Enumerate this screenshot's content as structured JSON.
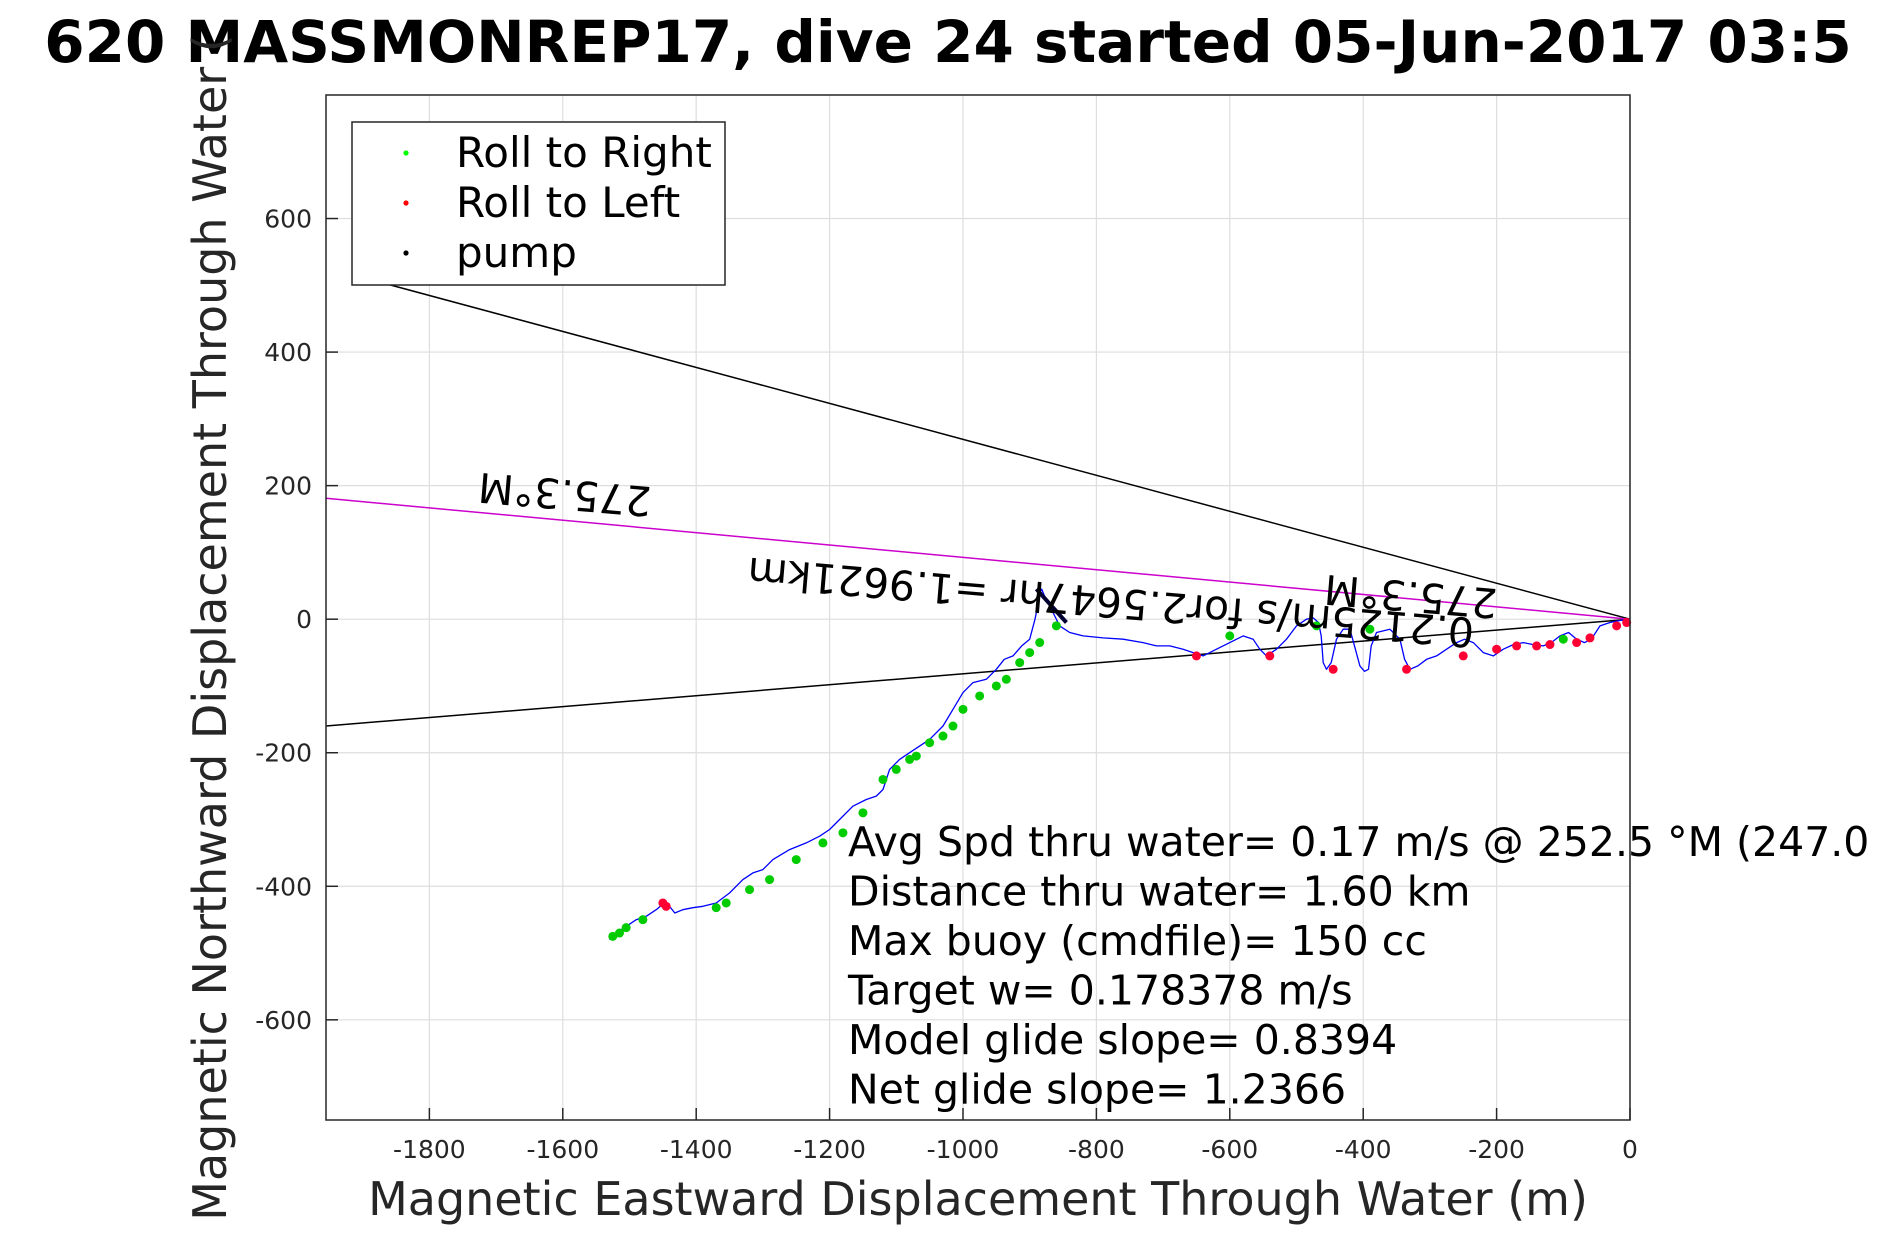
{
  "chart_data": {
    "type": "line",
    "title": "620 MASSMONREP17, dive 24 started 05-Jun-2017 03:5",
    "xlabel": "Magnetic Eastward Displacement Through Water (m)",
    "ylabel": "Magnetic Northward Displacement Through Water (",
    "xlim": [
      -1955,
      0
    ],
    "ylim": [
      -750,
      785
    ],
    "xticks": [
      -1800,
      -1600,
      -1400,
      -1200,
      -1000,
      -800,
      -600,
      -400,
      -200,
      0
    ],
    "yticks": [
      -600,
      -400,
      -200,
      0,
      200,
      400,
      600
    ],
    "grid": true,
    "legend_position": "top-left",
    "legend": [
      {
        "label": "Roll to Right",
        "color": "#00ff00"
      },
      {
        "label": "Roll to Left",
        "color": "#ff0000"
      },
      {
        "label": "pump",
        "color": "#000000"
      }
    ],
    "colors": {
      "track": "#0000ff",
      "right": "#00cc00",
      "left": "#ff0033",
      "pump": "#000033",
      "heading": "#cc00cc",
      "cone": "#000000"
    },
    "track": {
      "name": "glider track",
      "x": [
        0,
        -15,
        -30,
        -45,
        -58,
        -68,
        -80,
        -92,
        -105,
        -118,
        -130,
        -145,
        -160,
        -175,
        -190,
        -205,
        -220,
        -235,
        -248,
        -260,
        -275,
        -290,
        -305,
        -318,
        -330,
        -338,
        -345,
        -360,
        -380,
        -388,
        -392,
        -398,
        -405,
        -413,
        -420,
        -430,
        -440,
        -448,
        -455,
        -460,
        -463,
        -467,
        -475,
        -485,
        -500,
        -515,
        -530,
        -545,
        -555,
        -565,
        -580,
        -600,
        -620,
        -640,
        -655,
        -670,
        -690,
        -710,
        -730,
        -760,
        -790,
        -820,
        -840,
        -855,
        -865,
        -872,
        -878,
        -882,
        -885,
        -888,
        -892,
        -900,
        -912,
        -925,
        -938,
        -950,
        -965,
        -985,
        -1000,
        -1015,
        -1030,
        -1050,
        -1065,
        -1080,
        -1095,
        -1110,
        -1120,
        -1130,
        -1145,
        -1165,
        -1185,
        -1200,
        -1215,
        -1235,
        -1260,
        -1285,
        -1300,
        -1315,
        -1330,
        -1350,
        -1370,
        -1390,
        -1405,
        -1420,
        -1432,
        -1440,
        -1448,
        -1460,
        -1475,
        -1490,
        -1505,
        -1520,
        -1530
      ],
      "y": [
        0,
        -2,
        -5,
        -10,
        -30,
        -35,
        -30,
        -20,
        -25,
        -35,
        -40,
        -38,
        -35,
        -38,
        -45,
        -55,
        -50,
        -35,
        -30,
        -35,
        -45,
        -55,
        -60,
        -70,
        -75,
        -60,
        -30,
        -15,
        -20,
        -40,
        -75,
        -78,
        -70,
        -40,
        -15,
        -15,
        -30,
        -65,
        -75,
        -65,
        -25,
        -5,
        2,
        0,
        -10,
        -30,
        -45,
        -55,
        -45,
        -30,
        -25,
        -35,
        -45,
        -55,
        -50,
        -45,
        -40,
        -40,
        -35,
        -30,
        -28,
        -25,
        -20,
        -10,
        10,
        25,
        35,
        45,
        40,
        20,
        0,
        -30,
        -40,
        -55,
        -60,
        -75,
        -90,
        -95,
        -110,
        -135,
        -160,
        -180,
        -190,
        -200,
        -210,
        -225,
        -255,
        -265,
        -270,
        -280,
        -300,
        -315,
        -325,
        -335,
        -345,
        -360,
        -375,
        -380,
        -390,
        -410,
        -425,
        -430,
        -432,
        -435,
        -440,
        -430,
        -425,
        -435,
        -445,
        -450,
        -460,
        -470,
        -480
      ]
    },
    "heading_line": {
      "name": "275.3°M",
      "x": [
        0,
        -1955
      ],
      "y": [
        0,
        181
      ]
    },
    "cone_upper": {
      "x": [
        0,
        -1875
      ],
      "y": [
        0,
        505
      ]
    },
    "cone_lower": {
      "x": [
        0,
        -1955
      ],
      "y": [
        0,
        -160
      ]
    },
    "pump_segment": {
      "x": [
        -890,
        -845
      ],
      "y": [
        45,
        -5
      ]
    },
    "roll_right_x": [
      -1525,
      -1515,
      -1505,
      -1480,
      -1370,
      -1355,
      -1320,
      -1290,
      -1250,
      -1210,
      -1180,
      -1150,
      -1120,
      -1100,
      -1080,
      -1070,
      -1050,
      -1030,
      -1015,
      -1000,
      -975,
      -950,
      -935,
      -915,
      -900,
      -885,
      -860,
      -600,
      -470,
      -390,
      -100
    ],
    "roll_right_y": [
      -475,
      -470,
      -462,
      -450,
      -432,
      -425,
      -405,
      -390,
      -360,
      -335,
      -320,
      -290,
      -240,
      -225,
      -210,
      -205,
      -185,
      -175,
      -160,
      -135,
      -115,
      -100,
      -90,
      -65,
      -50,
      -35,
      -10,
      -25,
      -10,
      -15,
      -30
    ],
    "roll_left_x": [
      -1450,
      -1445,
      -650,
      -540,
      -445,
      -335,
      -250,
      -200,
      -170,
      -140,
      -120,
      -80,
      -60,
      -20,
      -5
    ],
    "roll_left_y": [
      -425,
      -430,
      -55,
      -55,
      -75,
      -75,
      -55,
      -45,
      -40,
      -40,
      -38,
      -35,
      -28,
      -10,
      -5
    ],
    "annotations": [
      "275.3°M",
      "275.3°M",
      "0.2125m/s for2.5647hr =1.9621km",
      "Avg Spd thru water=  0.17 m/s @ 252.5 °M (247.0",
      "Distance thru water=  1.60 km",
      "Max buoy (cmdfile)= 150 cc",
      "Target w= 0.178378 m/s",
      "Model glide slope= 0.8394",
      "Net glide slope= 1.2366"
    ]
  }
}
